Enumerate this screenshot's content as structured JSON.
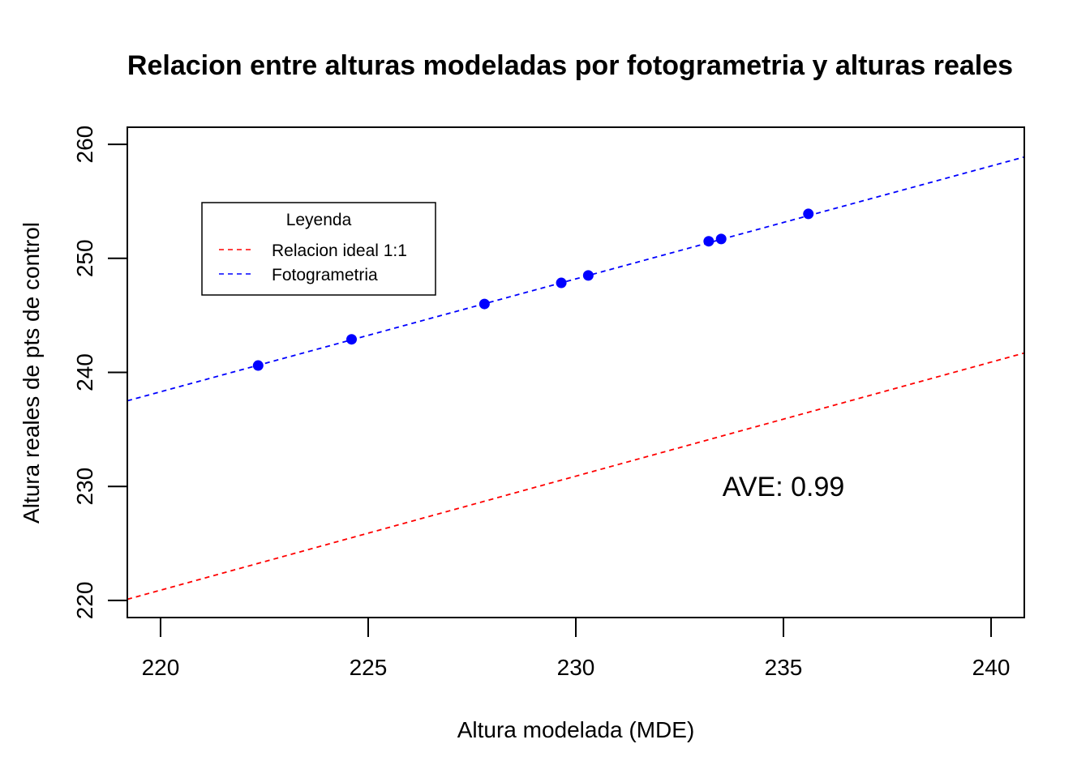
{
  "chart_data": {
    "type": "scatter",
    "title": "Relacion entre alturas modeladas por fotogrametria y alturas reales",
    "xlabel": "Altura modelada (MDE)",
    "ylabel": "Altura reales de pts de control",
    "xlim": [
      219.2,
      240.8
    ],
    "ylim": [
      218.5,
      261.5
    ],
    "x_ticks": [
      220,
      225,
      230,
      235,
      240
    ],
    "y_ticks": [
      220,
      230,
      240,
      250,
      260
    ],
    "points": [
      {
        "x": 222.35,
        "y": 240.6
      },
      {
        "x": 224.6,
        "y": 242.9
      },
      {
        "x": 227.8,
        "y": 246.0
      },
      {
        "x": 229.65,
        "y": 247.85
      },
      {
        "x": 230.3,
        "y": 248.5
      },
      {
        "x": 233.2,
        "y": 251.5
      },
      {
        "x": 233.5,
        "y": 251.7
      },
      {
        "x": 235.6,
        "y": 253.9
      }
    ],
    "lines": [
      {
        "name": "Relacion ideal 1:1",
        "slope": 1.0,
        "intercept": 0.9,
        "color": "#ff0000",
        "style": "dashed"
      },
      {
        "name": "Fotogrametria",
        "slope": 0.99,
        "intercept": 20.5,
        "color": "#0000ff",
        "style": "dashed"
      }
    ],
    "point_color": "#0000ff",
    "legend": {
      "title": "Leyenda",
      "placement": "top-left",
      "entries": [
        "Relacion ideal 1:1",
        "Fotogrametria"
      ]
    },
    "annotation": {
      "text": "AVE: 0.99",
      "x": 235.0,
      "y": 230.0
    }
  }
}
